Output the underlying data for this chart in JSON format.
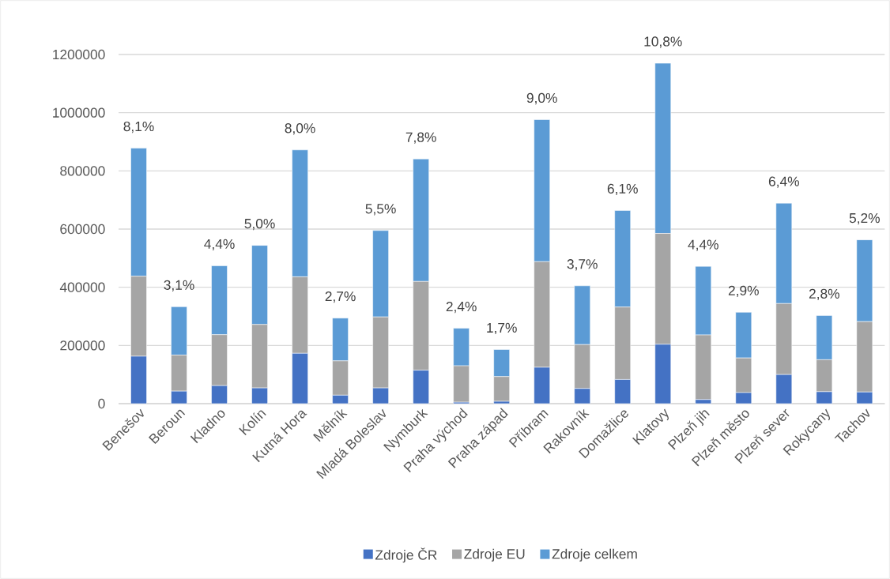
{
  "chart_data": {
    "type": "bar",
    "stacked": true,
    "categories": [
      "Benešov",
      "Beroun",
      "Kladno",
      "Kolín",
      "Kutná Hora",
      "Mělník",
      "Mladá Boleslav",
      "Nymburk",
      "Praha východ",
      "Praha západ",
      "Příbram",
      "Rakovník",
      "Domažlice",
      "Klatovy",
      "Plzeň jih",
      "Plzeň město",
      "Plzeň sever",
      "Rokycany",
      "Tachov"
    ],
    "series": [
      {
        "name": "Zdroje ČR",
        "color": "#4472c4",
        "values": [
          163000,
          43000,
          62000,
          54000,
          173000,
          29000,
          54000,
          115000,
          5000,
          8000,
          125000,
          52000,
          83000,
          204000,
          14000,
          38000,
          100000,
          41000,
          40000
        ]
      },
      {
        "name": "Zdroje EU",
        "color": "#a5a5a5",
        "values": [
          275000,
          124000,
          175000,
          218000,
          263000,
          118000,
          244000,
          305000,
          125000,
          85000,
          363000,
          151000,
          249000,
          381000,
          222000,
          119000,
          244000,
          110000,
          242000
        ]
      },
      {
        "name": "Zdroje celkem",
        "color": "#5b9bd5",
        "values": [
          440000,
          166000,
          237000,
          272000,
          436000,
          147000,
          297000,
          421000,
          129000,
          93000,
          488000,
          202000,
          332000,
          585000,
          236000,
          157000,
          345000,
          152000,
          281000
        ]
      }
    ],
    "annotations": [
      {
        "text": "8,1%",
        "x": "Benešov",
        "y": 878000
      },
      {
        "text": "3,1%",
        "x": "Beroun",
        "y": 333000
      },
      {
        "text": "4,4%",
        "x": "Kladno",
        "y": 474000
      },
      {
        "text": "5,0%",
        "x": "Kolín",
        "y": 544000
      },
      {
        "text": "8,0%",
        "x": "Kutná Hora",
        "y": 872000
      },
      {
        "text": "2,7%",
        "x": "Mělník",
        "y": 294000
      },
      {
        "text": "5,5%",
        "x": "Mladá Boleslav",
        "y": 595000
      },
      {
        "text": "7,8%",
        "x": "Nymburk",
        "y": 841000
      },
      {
        "text": "2,4%",
        "x": "Praha východ",
        "y": 259000
      },
      {
        "text": "1,7%",
        "x": "Praha západ",
        "y": 186000
      },
      {
        "text": "9,0%",
        "x": "Příbram",
        "y": 976000
      },
      {
        "text": "3,7%",
        "x": "Rakovník",
        "y": 405000
      },
      {
        "text": "6,1%",
        "x": "Domažlice",
        "y": 664000
      },
      {
        "text": "10,8%",
        "x": "Klatovy",
        "y": 1170000
      },
      {
        "text": "4,4%",
        "x": "Plzeň jih",
        "y": 472000
      },
      {
        "text": "2,9%",
        "x": "Plzeň město",
        "y": 314000
      },
      {
        "text": "6,4%",
        "x": "Plzeň sever",
        "y": 689000
      },
      {
        "text": "2,8%",
        "x": "Rokycany",
        "y": 303000
      },
      {
        "text": "5,2%",
        "x": "Tachov",
        "y": 563000
      }
    ],
    "ylim": [
      0,
      1200000
    ],
    "yticks": [
      0,
      200000,
      400000,
      600000,
      800000,
      1000000,
      1200000
    ],
    "grid": "y",
    "legend": "bottom"
  }
}
